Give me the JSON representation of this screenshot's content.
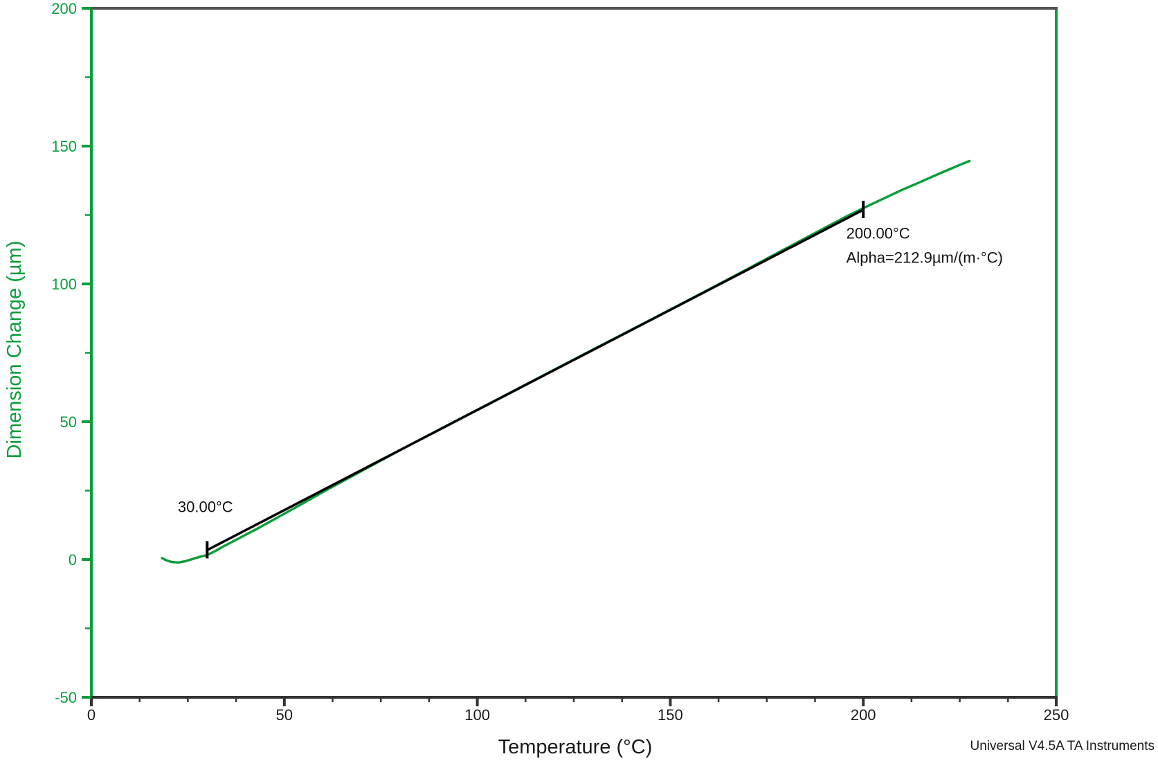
{
  "chart_data": {
    "type": "line",
    "title": "",
    "xlabel": "Temperature (°C)",
    "ylabel": "Dimension Change (µm)",
    "xlim": [
      0,
      250
    ],
    "ylim": [
      -50,
      200
    ],
    "grid": false,
    "legend": "none",
    "x_ticks": {
      "major": [
        0,
        50,
        100,
        150,
        200,
        250
      ],
      "labels": [
        "0",
        "50",
        "100",
        "150",
        "200",
        "250"
      ],
      "minor_step": 12.5
    },
    "y_ticks": {
      "major": [
        -50,
        0,
        50,
        100,
        150,
        200
      ],
      "labels": [
        "-50",
        "0",
        "50",
        "100",
        "150",
        "200"
      ],
      "minor_step": 25
    },
    "series": [
      {
        "name": "Dimension Change",
        "color": "#0A9E3C",
        "points": [
          [
            18.3,
            0.5
          ],
          [
            19.4,
            -0.3
          ],
          [
            20.8,
            -0.9
          ],
          [
            22.6,
            -1.1
          ],
          [
            24.4,
            -0.6
          ],
          [
            26.5,
            0.3
          ],
          [
            28.5,
            1.1
          ],
          [
            30,
            1.6
          ],
          [
            32,
            3.0
          ],
          [
            34,
            4.6
          ],
          [
            36.5,
            6.4
          ],
          [
            40,
            9.0
          ],
          [
            43,
            11.2
          ],
          [
            46,
            13.5
          ],
          [
            50,
            16.6
          ],
          [
            55,
            20.5
          ],
          [
            60,
            24.5
          ],
          [
            70,
            32.1
          ],
          [
            80,
            39.7
          ],
          [
            90,
            47.0
          ],
          [
            100,
            54.3
          ],
          [
            110,
            61.6
          ],
          [
            120,
            68.9
          ],
          [
            130,
            76.2
          ],
          [
            140,
            83.4
          ],
          [
            150,
            90.7
          ],
          [
            160,
            98.0
          ],
          [
            170,
            105.4
          ],
          [
            180,
            112.9
          ],
          [
            190,
            120.3
          ],
          [
            195,
            124.0
          ],
          [
            200,
            127.5
          ],
          [
            205,
            130.8
          ],
          [
            210,
            134.1
          ],
          [
            215,
            137.1
          ],
          [
            220,
            140.2
          ],
          [
            224,
            142.6
          ],
          [
            227.5,
            144.6
          ]
        ]
      }
    ],
    "tangent_line": {
      "color": "#000000",
      "x1": 30,
      "y1": 3.4,
      "x2": 200,
      "y2": 126.9
    },
    "annotations": [
      {
        "name": "onset-label",
        "lines": [
          "30.00°C"
        ],
        "x": 22.4,
        "y": 17.2
      },
      {
        "name": "endpoint-label",
        "lines": [
          "200.00°C",
          "Alpha=212.9µm/(m·°C)"
        ],
        "x": 195.6,
        "y": 116.4
      }
    ],
    "watermark": "Universal V4.5A TA Instruments",
    "axis_colors": {
      "y_axis": "#0A9E3C",
      "y_text": "#0A9E3C",
      "x_axis": "#333333",
      "frame_top": "#555555",
      "x_text": "#1a1a1a",
      "annotation_text": "#111111"
    }
  }
}
